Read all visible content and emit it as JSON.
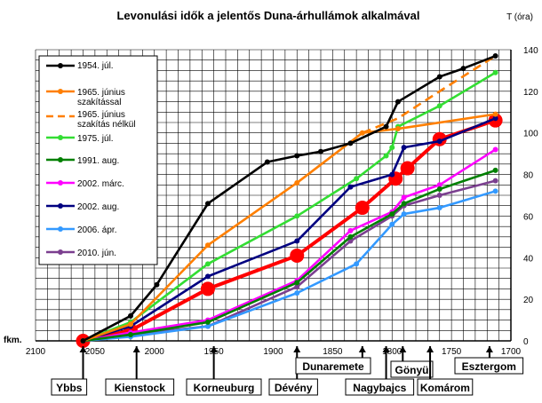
{
  "chart_data": {
    "type": "line",
    "title": "Levonulási idők a jelentős Duna-árhullámok alkalmával",
    "ylabel": "T (óra)",
    "xlabel": "fkm.",
    "xlim": [
      2100,
      1700
    ],
    "ylim": [
      0,
      140
    ],
    "x_ticks": [
      "2100",
      "2050",
      "2000",
      "1950",
      "1900",
      "1850",
      "1800",
      "1750",
      "1700"
    ],
    "y_ticks": [
      "0",
      "20",
      "40",
      "60",
      "80",
      "100",
      "120",
      "140"
    ],
    "grid": true,
    "legend_position": "top-left",
    "series": [
      {
        "name": "1954. júl.",
        "color": "#000000",
        "dash": false,
        "x": [
          2060,
          2020,
          1998,
          1955,
          1905,
          1880,
          1860,
          1835,
          1805,
          1795,
          1760,
          1740,
          1713
        ],
        "y": [
          0,
          12,
          27,
          66,
          86,
          89,
          91,
          95,
          103,
          115,
          127,
          131,
          137
        ]
      },
      {
        "name": "1965. június szakítással",
        "color": "#FF7F00",
        "dash": false,
        "x": [
          2060,
          2020,
          1955,
          1880,
          1825,
          1795,
          1713
        ],
        "y": [
          0,
          8,
          46,
          76,
          100,
          102,
          109
        ]
      },
      {
        "name": "1965. június szakítás nélkül",
        "color": "#FF7F00",
        "dash": true,
        "x": [
          1825,
          1795,
          1760,
          1713
        ],
        "y": [
          100,
          107,
          120,
          137
        ]
      },
      {
        "name": "1975. júl.",
        "color": "#33DD33",
        "dash": false,
        "x": [
          2060,
          2020,
          1955,
          1880,
          1830,
          1805,
          1800,
          1795,
          1760,
          1713
        ],
        "y": [
          0,
          9,
          37,
          60,
          78,
          89,
          93,
          103,
          113,
          129
        ]
      },
      {
        "name": "1991. aug.",
        "color": "#008000",
        "dash": false,
        "x": [
          2060,
          2020,
          1955,
          1880,
          1835,
          1800,
          1790,
          1760,
          1713
        ],
        "y": [
          0,
          3,
          9,
          28,
          50,
          61,
          66,
          73,
          82
        ]
      },
      {
        "name": "2002. márc.",
        "color": "#FF00FF",
        "dash": false,
        "x": [
          2060,
          2020,
          1955,
          1880,
          1835,
          1800,
          1790,
          1760,
          1713
        ],
        "y": [
          0,
          4,
          10,
          29,
          53,
          62,
          69,
          75,
          92
        ]
      },
      {
        "name": "2002. aug.",
        "color": "#000080",
        "dash": false,
        "x": [
          2060,
          2020,
          1955,
          1880,
          1835,
          1800,
          1790,
          1760,
          1713
        ],
        "y": [
          0,
          7,
          31,
          48,
          74,
          80,
          93,
          96,
          107
        ]
      },
      {
        "name": "2006. ápr.",
        "color": "#3399FF",
        "dash": false,
        "x": [
          2060,
          2020,
          1955,
          1880,
          1830,
          1800,
          1790,
          1760,
          1713
        ],
        "y": [
          0,
          2,
          7,
          23,
          37,
          56,
          61,
          64,
          72
        ]
      },
      {
        "name": "2010. jún.",
        "color": "#7B3F8F",
        "dash": false,
        "x": [
          2060,
          2020,
          1955,
          1880,
          1835,
          1800,
          1790,
          1760,
          1713
        ],
        "y": [
          0,
          3,
          7,
          26,
          48,
          60,
          65,
          70,
          77
        ]
      },
      {
        "name": "",
        "color": "#FF0000",
        "dash": false,
        "thick": true,
        "markers": "big",
        "x": [
          2060,
          2020,
          1955,
          1880,
          1825,
          1797,
          1787,
          1760,
          1713
        ],
        "y": [
          0,
          5,
          25,
          41,
          64,
          78,
          83,
          97,
          106
        ]
      }
    ],
    "stations": [
      {
        "name": "Ybbs",
        "x": 2060,
        "row": "low"
      },
      {
        "name": "Kienstock",
        "x": 2015,
        "row": "low"
      },
      {
        "name": "Korneuburg",
        "x": 1950,
        "row": "low"
      },
      {
        "name": "Dévény",
        "x": 1880,
        "row": "low"
      },
      {
        "name": "Dunaremete",
        "x": 1825,
        "row": "mid"
      },
      {
        "name": "Nagybajcs",
        "x": 1805,
        "row": "low"
      },
      {
        "name": "Gönyü",
        "x": 1791,
        "row": "high"
      },
      {
        "name": "Komárom",
        "x": 1768,
        "row": "low"
      },
      {
        "name": "Esztergom",
        "x": 1718,
        "row": "mid"
      }
    ]
  }
}
